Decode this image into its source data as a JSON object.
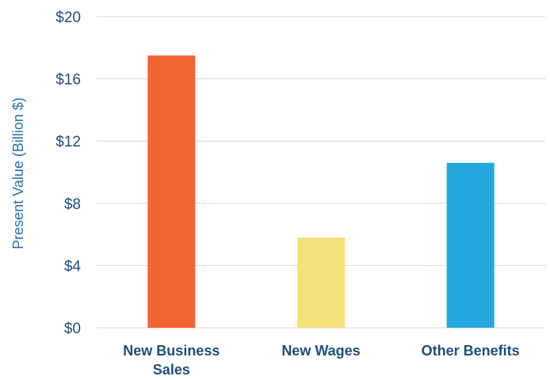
{
  "chart_data": {
    "type": "bar",
    "categories": [
      "New Business Sales",
      "New Wages",
      "Other Benefits"
    ],
    "category_lines": [
      [
        "New Business",
        "Sales"
      ],
      [
        "New Wages"
      ],
      [
        "Other Benefits"
      ]
    ],
    "values": [
      17.5,
      5.8,
      10.6
    ],
    "colors": [
      "#f26532",
      "#f5e17a",
      "#22a8df"
    ],
    "ylabel": "Present Value (Billion $)",
    "ylim": [
      0,
      20
    ],
    "yticks": [
      0,
      4,
      8,
      12,
      16,
      20
    ],
    "ytick_labels": [
      "$0",
      "$4",
      "$8",
      "$12",
      "$16",
      "$20"
    ],
    "grid": true
  }
}
